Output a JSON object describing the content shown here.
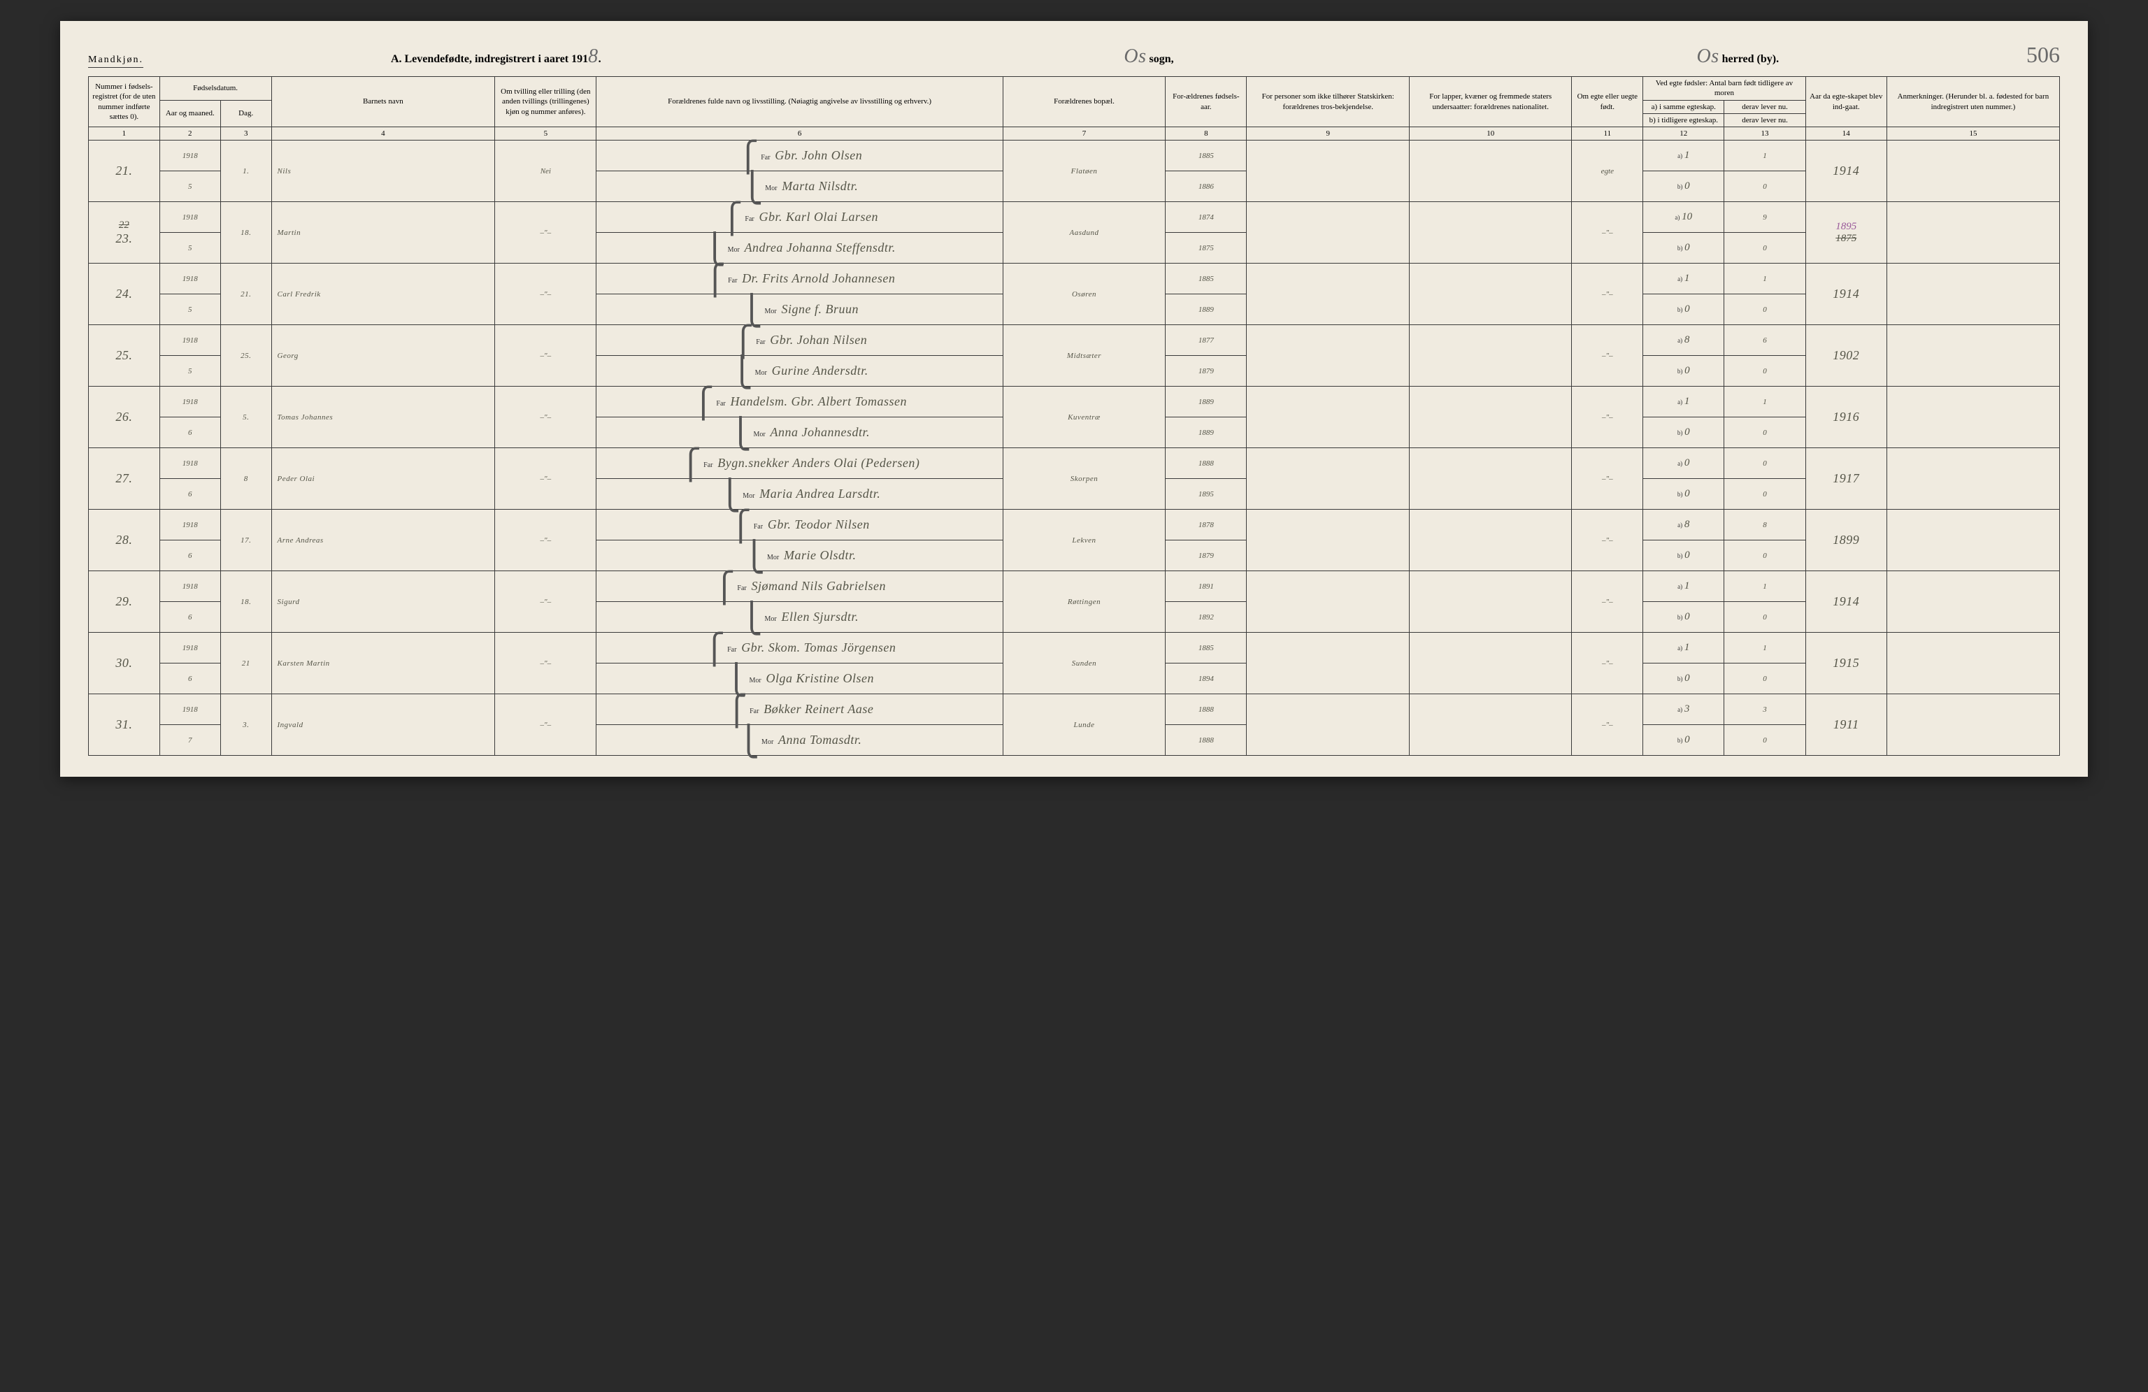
{
  "header": {
    "gender_label": "Mandkjøn.",
    "title_prefix": "A. Levendefødte, indregistrert i aaret 191",
    "year_suffix": "8",
    "sogn_label": "sogn,",
    "sogn_value": "Os",
    "herred_label": "herred (by).",
    "herred_value": "Os",
    "page_number": "506"
  },
  "columns": {
    "c1": "Nummer i fødsels-registret (for de uten nummer indførte sættes 0).",
    "c2_top": "Fødselsdatum.",
    "c2": "Aar og maaned.",
    "c3": "Dag.",
    "c4": "Barnets navn",
    "c5": "Om tvilling eller trilling (den anden tvillings (trillingenes) kjøn og nummer anføres).",
    "c6": "Forældrenes fulde navn og livsstilling. (Nøiagtig angivelse av livsstilling og erhverv.)",
    "c7": "Forældrenes bopæl.",
    "c8": "For-ældrenes fødsels-aar.",
    "c9": "For personer som ikke tilhører Statskirken: forældrenes tros-bekjendelse.",
    "c10": "For lapper, kvæner og fremmede staters undersaatter: forældrenes nationalitet.",
    "c11": "Om egte eller uegte født.",
    "c12_top": "Ved egte fødsler: Antal barn født tidligere av moren",
    "c12a": "a) i samme egteskap.",
    "c12b": "b) i tidligere egteskap.",
    "c13a": "derav lever nu.",
    "c13b": "derav lever nu.",
    "c14": "Aar da egte-skapet blev ind-gaat.",
    "c15": "Anmerkninger. (Herunder bl. a. fødested for barn indregistrert uten nummer.)",
    "n1": "1",
    "n2": "2",
    "n3": "3",
    "n4": "4",
    "n5": "5",
    "n6": "6",
    "n7": "7",
    "n8": "8",
    "n9": "9",
    "n10": "10",
    "n11": "11",
    "n12": "12",
    "n13": "13",
    "n14": "14",
    "n15": "15",
    "far": "Far",
    "mor": "Mor"
  },
  "rows": [
    {
      "num": "21.",
      "year": "1918",
      "month": "5",
      "day": "1.",
      "name": "Nils",
      "twin": "Nei",
      "far": "Gbr. John Olsen",
      "mor": "Marta Nilsdtr.",
      "residence": "Flatøen",
      "far_year": "1885",
      "mor_year": "1886",
      "legit": "egte",
      "a12": "1",
      "a13": "1",
      "b12": "0",
      "b13": "0",
      "marriage": "1914",
      "note": ""
    },
    {
      "num": "23.",
      "num_strike": "22",
      "year": "1918",
      "month": "5",
      "day": "18.",
      "name": "Martin",
      "twin": "–\"–",
      "far": "Gbr. Karl Olai Larsen",
      "mor": "Andrea Johanna Steffensdtr.",
      "residence": "Aasdund",
      "far_year": "1874",
      "mor_year": "1875",
      "legit": "–\"–",
      "a12": "10",
      "a13": "9",
      "b12": "0",
      "b13": "0",
      "marriage": "1895",
      "marriage_strike": "1875",
      "note": ""
    },
    {
      "num": "24.",
      "year": "1918",
      "month": "5",
      "day": "21.",
      "name": "Carl Fredrik",
      "twin": "–\"–",
      "far": "Dr. Frits Arnold Johannesen",
      "mor": "Signe f. Bruun",
      "residence": "Osøren",
      "far_year": "1885",
      "mor_year": "1889",
      "legit": "–\"–",
      "a12": "1",
      "a13": "1",
      "b12": "0",
      "b13": "0",
      "marriage": "1914",
      "note": ""
    },
    {
      "num": "25.",
      "year": "1918",
      "month": "5",
      "day": "25.",
      "name": "Georg",
      "twin": "–\"–",
      "far": "Gbr. Johan Nilsen",
      "mor": "Gurine Andersdtr.",
      "residence": "Midtsæter",
      "far_year": "1877",
      "mor_year": "1879",
      "legit": "–\"–",
      "a12": "8",
      "a13": "6",
      "b12": "0",
      "b13": "0",
      "marriage": "1902",
      "note": ""
    },
    {
      "num": "26.",
      "year": "1918",
      "month": "6",
      "day": "5.",
      "name": "Tomas Johannes",
      "twin": "–\"–",
      "far": "Handelsm. Gbr. Albert Tomassen",
      "mor": "Anna Johannesdtr.",
      "residence": "Kuventræ",
      "far_year": "1889",
      "mor_year": "1889",
      "legit": "–\"–",
      "a12": "1",
      "a13": "1",
      "b12": "0",
      "b13": "0",
      "marriage": "1916",
      "note": ""
    },
    {
      "num": "27.",
      "year": "1918",
      "month": "6",
      "day": "8",
      "name": "Peder Olai",
      "twin": "–\"–",
      "far": "Bygn.snekker Anders Olai (Pedersen)",
      "mor": "Maria Andrea Larsdtr.",
      "residence": "Skorpen",
      "far_year": "1888",
      "mor_year": "1895",
      "legit": "–\"–",
      "a12": "0",
      "a13": "0",
      "b12": "0",
      "b13": "0",
      "marriage": "1917",
      "note": ""
    },
    {
      "num": "28.",
      "year": "1918",
      "month": "6",
      "day": "17.",
      "name": "Arne Andreas",
      "twin": "–\"–",
      "far": "Gbr. Teodor Nilsen",
      "mor": "Marie Olsdtr.",
      "residence": "Lekven",
      "far_year": "1878",
      "mor_year": "1879",
      "legit": "–\"–",
      "a12": "8",
      "a13": "8",
      "b12": "0",
      "b13": "0",
      "marriage": "1899",
      "note": ""
    },
    {
      "num": "29.",
      "year": "1918",
      "month": "6",
      "day": "18.",
      "name": "Sigurd",
      "twin": "–\"–",
      "far": "Sjømand Nils Gabrielsen",
      "mor": "Ellen Sjursdtr.",
      "residence": "Røttingen",
      "far_year": "1891",
      "mor_year": "1892",
      "legit": "–\"–",
      "a12": "1",
      "a13": "1",
      "b12": "0",
      "b13": "0",
      "marriage": "1914",
      "note": ""
    },
    {
      "num": "30.",
      "year": "1918",
      "month": "6",
      "day": "21",
      "name": "Karsten Martin",
      "twin": "–\"–",
      "far": "Gbr. Skom. Tomas Jörgensen",
      "mor": "Olga Kristine Olsen",
      "residence": "Sunden",
      "far_year": "1885",
      "mor_year": "1894",
      "legit": "–\"–",
      "a12": "1",
      "a13": "1",
      "b12": "0",
      "b13": "0",
      "marriage": "1915",
      "note": ""
    },
    {
      "num": "31.",
      "year": "1918",
      "month": "7",
      "day": "3.",
      "name": "Ingvald",
      "twin": "–\"–",
      "far": "Bøkker Reinert Aase",
      "mor": "Anna Tomasdtr.",
      "residence": "Lunde",
      "far_year": "1888",
      "mor_year": "1888",
      "legit": "–\"–",
      "a12": "3",
      "a13": "3",
      "b12": "0",
      "b13": "0",
      "marriage": "1911",
      "note": ""
    }
  ],
  "colors": {
    "paper": "#f0ebe0",
    "ink": "#3a3a3a",
    "handwriting": "#555548",
    "purple_ink": "#9a5a9a"
  }
}
